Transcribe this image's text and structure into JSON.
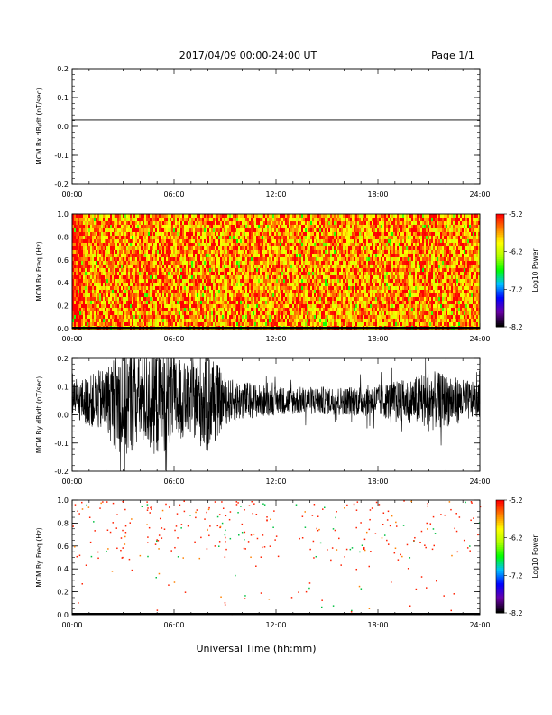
{
  "header": {
    "title": "2017/04/09  00:00-24:00 UT",
    "page": "Page 1/1"
  },
  "xlabel": "Universal Time (hh:mm)",
  "chart_data": [
    {
      "type": "line",
      "ylabel": "MCM Bx dB/dt (nT/sec)",
      "xlim": [
        0,
        24
      ],
      "ylim": [
        -0.2,
        0.2
      ],
      "xticks": [
        "00:00",
        "06:00",
        "12:00",
        "18:00",
        "24:00"
      ],
      "yticks": [
        "-0.2",
        "-0.1",
        "0.0",
        "0.1",
        "0.2"
      ],
      "x": [
        0,
        24
      ],
      "y": [
        0.022,
        0.022
      ]
    },
    {
      "type": "heatmap",
      "ylabel": "MCM Bx Freq (Hz)",
      "xlim": [
        0,
        24
      ],
      "ylim": [
        0,
        1.0
      ],
      "xticks": [
        "00:00",
        "06:00",
        "12:00",
        "18:00",
        "24:00"
      ],
      "yticks": [
        "0.0",
        "0.2",
        "0.4",
        "0.6",
        "0.8",
        "1.0"
      ],
      "colorbar": {
        "label": "Log10 Power",
        "range": [
          -8.2,
          -5.2
        ],
        "ticks": [
          "-5.2",
          "-6.2",
          "-7.2",
          "-8.2"
        ]
      },
      "typical_level": -5.6
    },
    {
      "type": "line",
      "ylabel": "MCM By dB/dt (nT/sec)",
      "xlim": [
        0,
        24
      ],
      "ylim": [
        -0.2,
        0.2
      ],
      "xticks": [
        "00:00",
        "06:00",
        "12:00",
        "18:00",
        "24:00"
      ],
      "yticks": [
        "-0.2",
        "-0.1",
        "0.0",
        "0.1",
        "0.2"
      ],
      "center": 0.05,
      "envelope": [
        {
          "x": 0,
          "amp": 0.06
        },
        {
          "x": 2,
          "amp": 0.12
        },
        {
          "x": 3,
          "amp": 0.22
        },
        {
          "x": 4,
          "amp": 0.15
        },
        {
          "x": 5,
          "amp": 0.2
        },
        {
          "x": 7,
          "amp": 0.12
        },
        {
          "x": 8,
          "amp": 0.2
        },
        {
          "x": 9,
          "amp": 0.08
        },
        {
          "x": 12,
          "amp": 0.05
        },
        {
          "x": 16,
          "amp": 0.05
        },
        {
          "x": 18,
          "amp": 0.06
        },
        {
          "x": 20,
          "amp": 0.08
        },
        {
          "x": 21,
          "amp": 0.11
        },
        {
          "x": 24,
          "amp": 0.06
        }
      ]
    },
    {
      "type": "heatmap",
      "ylabel": "MCM By Freq (Hz)",
      "xlim": [
        0,
        24
      ],
      "ylim": [
        0,
        1.0
      ],
      "xticks": [
        "00:00",
        "06:00",
        "12:00",
        "18:00",
        "24:00"
      ],
      "yticks": [
        "0.0",
        "0.2",
        "0.4",
        "0.6",
        "0.8",
        "1.0"
      ],
      "colorbar": {
        "label": "Log10 Power",
        "range": [
          -8.2,
          -5.2
        ],
        "ticks": [
          "-5.2",
          "-6.2",
          "-7.2",
          "-8.2"
        ]
      },
      "sparse_points": "scattered mostly above 0.5 Hz"
    }
  ],
  "colors": {
    "axis": "#000000",
    "trace": "#000000",
    "colormap": [
      "#000000",
      "#6a00a8",
      "#0000ff",
      "#00c0ff",
      "#00ff00",
      "#b0ff00",
      "#ffff00",
      "#ff8000",
      "#ff0000"
    ]
  }
}
